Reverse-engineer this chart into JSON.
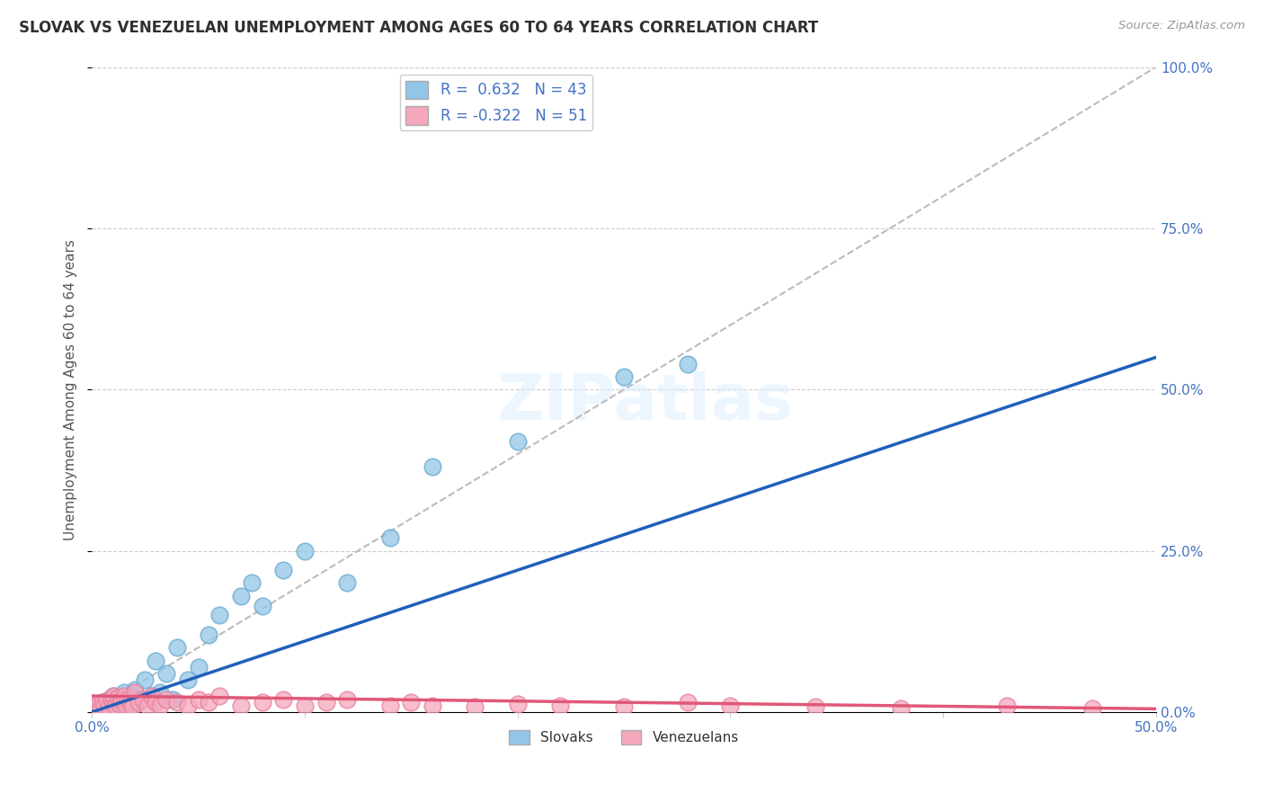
{
  "title": "SLOVAK VS VENEZUELAN UNEMPLOYMENT AMONG AGES 60 TO 64 YEARS CORRELATION CHART",
  "source": "Source: ZipAtlas.com",
  "ylabel": "Unemployment Among Ages 60 to 64 years",
  "xlim": [
    0.0,
    0.5
  ],
  "ylim": [
    0.0,
    1.0
  ],
  "xticks": [
    0.0,
    0.1,
    0.2,
    0.3,
    0.4,
    0.5
  ],
  "xticklabels": [
    "0.0%",
    "",
    "",
    "",
    "",
    "50.0%"
  ],
  "yticks": [
    0.0,
    0.25,
    0.5,
    0.75,
    1.0
  ],
  "yticklabels_left": [
    "",
    "",
    "",
    "",
    ""
  ],
  "yticklabels_right": [
    "0.0%",
    "25.0%",
    "50.0%",
    "75.0%",
    "100.0%"
  ],
  "slovak_R": 0.632,
  "slovak_N": 43,
  "venezuelan_R": -0.322,
  "venezuelan_N": 51,
  "slovak_color": "#92C5E8",
  "venezuelan_color": "#F5A8BC",
  "slovak_edge_color": "#6AAAD0",
  "venezuelan_edge_color": "#E880A0",
  "slovak_line_color": "#2060B8",
  "venezuelan_line_color": "#E05878",
  "ref_line_color": "#BBBBBB",
  "background_color": "#FFFFFF",
  "grid_color": "#CCCCCC",
  "title_color": "#303030",
  "source_color": "#999999",
  "axis_label_color": "#4472C4",
  "left_tick_color": "#AAAAAA",
  "slovak_line_x": [
    0.0,
    0.5
  ],
  "slovak_line_y": [
    0.0,
    0.55
  ],
  "venezuelan_line_x": [
    0.0,
    0.5
  ],
  "venezuelan_line_y": [
    0.025,
    0.005
  ],
  "ref_line_x": [
    0.0,
    0.5
  ],
  "ref_line_y": [
    0.0,
    1.0
  ],
  "slovak_points_x": [
    0.002,
    0.003,
    0.004,
    0.005,
    0.006,
    0.007,
    0.008,
    0.009,
    0.01,
    0.01,
    0.011,
    0.012,
    0.013,
    0.014,
    0.015,
    0.016,
    0.017,
    0.018,
    0.019,
    0.02,
    0.022,
    0.025,
    0.028,
    0.03,
    0.032,
    0.035,
    0.038,
    0.04,
    0.045,
    0.05,
    0.055,
    0.06,
    0.07,
    0.075,
    0.08,
    0.09,
    0.1,
    0.12,
    0.14,
    0.16,
    0.2,
    0.25,
    0.28
  ],
  "slovak_points_y": [
    0.005,
    0.01,
    0.008,
    0.015,
    0.012,
    0.008,
    0.02,
    0.01,
    0.025,
    0.018,
    0.015,
    0.022,
    0.01,
    0.018,
    0.03,
    0.02,
    0.015,
    0.025,
    0.012,
    0.035,
    0.02,
    0.05,
    0.025,
    0.08,
    0.03,
    0.06,
    0.02,
    0.1,
    0.05,
    0.07,
    0.12,
    0.15,
    0.18,
    0.2,
    0.165,
    0.22,
    0.25,
    0.2,
    0.27,
    0.38,
    0.42,
    0.52,
    0.54
  ],
  "venezuelan_points_x": [
    0.002,
    0.003,
    0.004,
    0.005,
    0.006,
    0.007,
    0.008,
    0.009,
    0.01,
    0.01,
    0.011,
    0.012,
    0.013,
    0.014,
    0.015,
    0.016,
    0.017,
    0.018,
    0.019,
    0.02,
    0.022,
    0.024,
    0.026,
    0.028,
    0.03,
    0.032,
    0.035,
    0.04,
    0.045,
    0.05,
    0.055,
    0.06,
    0.07,
    0.08,
    0.09,
    0.1,
    0.11,
    0.12,
    0.14,
    0.15,
    0.16,
    0.18,
    0.2,
    0.22,
    0.25,
    0.28,
    0.3,
    0.34,
    0.38,
    0.43,
    0.47
  ],
  "venezuelan_points_y": [
    0.008,
    0.012,
    0.006,
    0.015,
    0.01,
    0.018,
    0.008,
    0.02,
    0.015,
    0.025,
    0.01,
    0.022,
    0.012,
    0.018,
    0.025,
    0.01,
    0.02,
    0.015,
    0.008,
    0.03,
    0.015,
    0.02,
    0.01,
    0.025,
    0.015,
    0.01,
    0.02,
    0.015,
    0.01,
    0.02,
    0.015,
    0.025,
    0.01,
    0.015,
    0.02,
    0.01,
    0.015,
    0.02,
    0.01,
    0.015,
    0.01,
    0.008,
    0.012,
    0.01,
    0.008,
    0.015,
    0.01,
    0.008,
    0.005,
    0.01,
    0.005
  ]
}
